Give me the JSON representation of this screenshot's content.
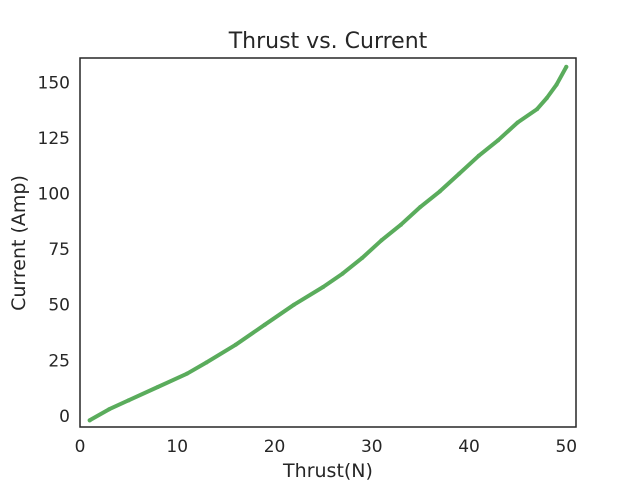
{
  "chart_data": {
    "type": "line",
    "title": "Thrust vs. Current",
    "xlabel": "Thrust(N)",
    "ylabel": "Current (Amp)",
    "xlim": [
      0,
      51
    ],
    "ylim": [
      -5,
      161
    ],
    "xticks": [
      0,
      10,
      20,
      30,
      40,
      50
    ],
    "yticks": [
      0,
      25,
      50,
      75,
      100,
      125,
      150
    ],
    "grid": false,
    "legend": "none",
    "series": [
      {
        "color": "#5aac5c",
        "x": [
          1,
          3,
          5,
          8,
          11,
          13,
          16,
          19,
          22,
          25,
          27,
          29,
          31,
          33,
          35,
          37,
          39,
          41,
          43,
          45,
          47,
          48,
          49,
          50
        ],
        "y": [
          -2,
          3,
          7,
          13,
          19,
          24,
          32,
          41,
          50,
          58,
          64,
          71,
          79,
          86,
          94,
          101,
          109,
          117,
          124,
          132,
          138,
          143,
          149,
          157
        ]
      }
    ]
  }
}
